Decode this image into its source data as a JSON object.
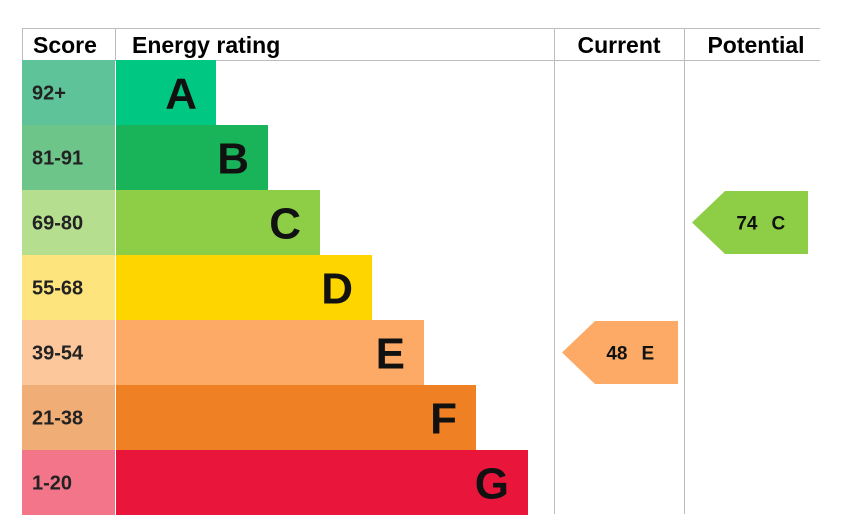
{
  "header": {
    "score": "Score",
    "energy_rating": "Energy rating",
    "current": "Current",
    "potential": "Potential"
  },
  "chart_data": {
    "type": "bar",
    "bands": [
      {
        "score": "92+",
        "letter": "A",
        "score_color": "#5ec399",
        "bar_color": "#00c781"
      },
      {
        "score": "81-91",
        "letter": "B",
        "score_color": "#6dc58a",
        "bar_color": "#19b459"
      },
      {
        "score": "69-80",
        "letter": "C",
        "score_color": "#b5de8e",
        "bar_color": "#8dce46"
      },
      {
        "score": "55-68",
        "letter": "D",
        "score_color": "#fde47c",
        "bar_color": "#ffd500"
      },
      {
        "score": "39-54",
        "letter": "E",
        "score_color": "#fcc79b",
        "bar_color": "#fcaa65"
      },
      {
        "score": "21-38",
        "letter": "F",
        "score_color": "#f0ad75",
        "bar_color": "#ef8023"
      },
      {
        "score": "1-20",
        "letter": "G",
        "score_color": "#f2758a",
        "bar_color": "#e9153b"
      }
    ],
    "current": {
      "value": 48,
      "letter": "E",
      "color": "#fcaa65"
    },
    "potential": {
      "value": 74,
      "letter": "C",
      "color": "#8dce46"
    }
  }
}
